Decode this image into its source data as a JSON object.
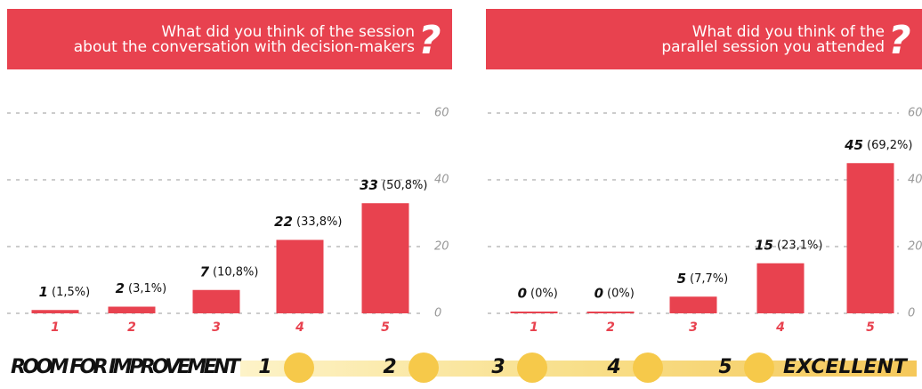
{
  "chart_data": [
    {
      "type": "bar",
      "title": [
        "What did you think of the session",
        "about the conversation with decision-makers"
      ],
      "title_mark": "?",
      "categories": [
        "1",
        "2",
        "3",
        "4",
        "5"
      ],
      "values": [
        1,
        2,
        7,
        22,
        33
      ],
      "share_labels": [
        "(1,5%)",
        "(3,1%)",
        "(10,8%)",
        "(33,8%)",
        "(50,8%)"
      ],
      "color": "#e8424f",
      "ylim": [
        0,
        60
      ],
      "yticks": [
        0,
        20,
        40,
        60
      ],
      "grid": true
    },
    {
      "type": "bar",
      "title": [
        "What did you think of the",
        "parallel session you attended"
      ],
      "title_mark": "?",
      "categories": [
        "1",
        "2",
        "3",
        "4",
        "5"
      ],
      "values": [
        0,
        0,
        5,
        15,
        45
      ],
      "share_labels": [
        "(0%)",
        "(0%)",
        "(7,7%)",
        "(23,1%)",
        "(69,2%)"
      ],
      "color": "#e8424f",
      "ylim": [
        0,
        60
      ],
      "yticks": [
        0,
        20,
        40,
        60
      ],
      "grid": true
    }
  ],
  "scale": {
    "low": "ROOM FOR IMPROVEMENT",
    "steps": [
      "1",
      "2",
      "3",
      "4",
      "5"
    ],
    "high": "EXCELLENT"
  }
}
